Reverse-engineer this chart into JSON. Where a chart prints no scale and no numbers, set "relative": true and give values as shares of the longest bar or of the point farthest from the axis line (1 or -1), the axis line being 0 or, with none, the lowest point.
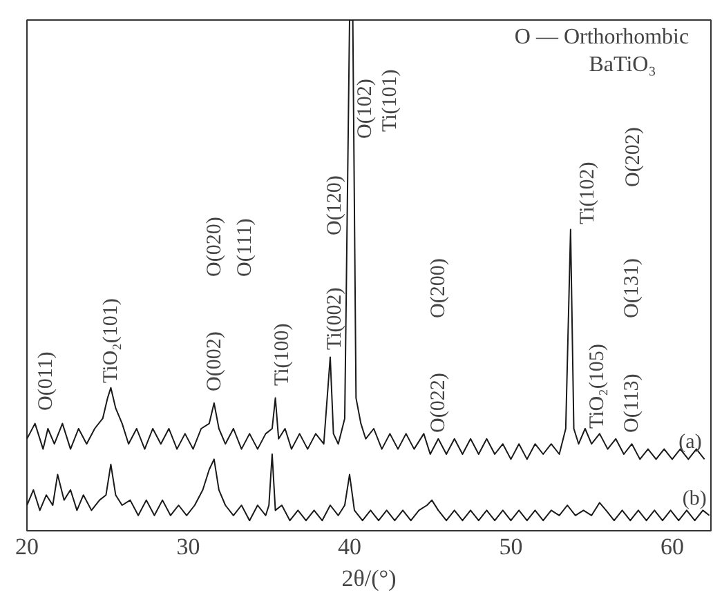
{
  "chart_data": {
    "type": "line",
    "relative": true,
    "xlabel": "2θ/(°)",
    "xlim": [
      20,
      62.4
    ],
    "xticks": [
      20,
      30,
      40,
      50,
      60
    ],
    "tick_labels": "x",
    "grid": false,
    "x": [
      20.0,
      20.5,
      21.0,
      21.3,
      21.7,
      22.2,
      22.7,
      23.2,
      23.7,
      24.2,
      24.7,
      25.0,
      25.2,
      25.5,
      25.9,
      26.3,
      26.8,
      27.3,
      27.8,
      28.3,
      28.8,
      29.3,
      29.8,
      30.3,
      30.8,
      31.3,
      31.6,
      31.9,
      32.3,
      32.8,
      33.3,
      33.8,
      34.3,
      34.8,
      35.2,
      35.4,
      35.6,
      36.0,
      36.4,
      36.9,
      37.4,
      37.9,
      38.4,
      38.8,
      39.0,
      39.3,
      39.7,
      40.0,
      40.2,
      40.4,
      40.7,
      41.0,
      41.5,
      42.0,
      42.5,
      43.0,
      43.5,
      44.0,
      44.6,
      45.0,
      45.5,
      46.0,
      46.5,
      47.0,
      47.5,
      48.0,
      48.5,
      49.0,
      49.5,
      50.0,
      50.5,
      51.0,
      51.5,
      52.0,
      52.5,
      53.0,
      53.4,
      53.7,
      53.9,
      54.2,
      54.6,
      55.0,
      55.5,
      56.0,
      56.5,
      57.0,
      57.5,
      58.0,
      58.5,
      59.0,
      59.5,
      60.0,
      60.5,
      61.0,
      61.5,
      62.0
    ],
    "series": [
      {
        "name": "(a)",
        "color": "#1a1a1a",
        "values": [
          0.18,
          0.21,
          0.16,
          0.2,
          0.17,
          0.21,
          0.16,
          0.2,
          0.17,
          0.2,
          0.22,
          0.26,
          0.28,
          0.24,
          0.21,
          0.17,
          0.2,
          0.16,
          0.2,
          0.17,
          0.2,
          0.16,
          0.19,
          0.16,
          0.2,
          0.21,
          0.25,
          0.2,
          0.17,
          0.2,
          0.16,
          0.19,
          0.16,
          0.19,
          0.2,
          0.26,
          0.18,
          0.2,
          0.16,
          0.19,
          0.16,
          0.19,
          0.17,
          0.34,
          0.19,
          0.17,
          0.22,
          1.0,
          1.0,
          0.26,
          0.21,
          0.18,
          0.2,
          0.16,
          0.19,
          0.16,
          0.19,
          0.16,
          0.19,
          0.15,
          0.18,
          0.15,
          0.18,
          0.15,
          0.18,
          0.15,
          0.18,
          0.15,
          0.17,
          0.14,
          0.17,
          0.14,
          0.17,
          0.15,
          0.17,
          0.15,
          0.2,
          0.59,
          0.2,
          0.17,
          0.2,
          0.17,
          0.19,
          0.16,
          0.18,
          0.15,
          0.17,
          0.14,
          0.16,
          0.14,
          0.16,
          0.14,
          0.16,
          0.14,
          0.16,
          0.14
        ]
      },
      {
        "name": "(b)",
        "color": "#1a1a1a",
        "x": [
          20.0,
          20.4,
          20.8,
          21.2,
          21.6,
          21.9,
          22.3,
          22.7,
          23.1,
          23.5,
          24.0,
          24.5,
          24.9,
          25.2,
          25.5,
          25.9,
          26.4,
          26.9,
          27.4,
          27.9,
          28.4,
          28.9,
          29.4,
          29.9,
          30.4,
          30.9,
          31.3,
          31.6,
          31.9,
          32.3,
          32.8,
          33.3,
          33.8,
          34.3,
          34.8,
          35.0,
          35.2,
          35.4,
          35.8,
          36.3,
          36.8,
          37.3,
          37.8,
          38.3,
          38.8,
          39.3,
          39.7,
          40.0,
          40.3,
          40.8,
          41.3,
          41.8,
          42.3,
          42.8,
          43.3,
          43.8,
          44.3,
          44.8,
          45.1,
          45.5,
          46.0,
          46.5,
          47.0,
          47.5,
          48.0,
          48.5,
          49.0,
          49.5,
          50.0,
          50.5,
          51.0,
          51.5,
          52.0,
          52.5,
          53.0,
          53.5,
          54.0,
          54.5,
          55.0,
          55.5,
          55.9,
          56.4,
          56.9,
          57.4,
          57.9,
          58.4,
          58.9,
          59.4,
          59.9,
          60.4,
          60.9,
          61.4,
          61.9,
          62.3
        ],
        "values": [
          0.05,
          0.08,
          0.04,
          0.07,
          0.05,
          0.11,
          0.06,
          0.08,
          0.04,
          0.07,
          0.04,
          0.06,
          0.07,
          0.13,
          0.07,
          0.05,
          0.06,
          0.03,
          0.06,
          0.03,
          0.06,
          0.03,
          0.05,
          0.03,
          0.05,
          0.08,
          0.12,
          0.14,
          0.08,
          0.05,
          0.03,
          0.05,
          0.02,
          0.05,
          0.03,
          0.05,
          0.15,
          0.04,
          0.05,
          0.02,
          0.04,
          0.02,
          0.04,
          0.02,
          0.05,
          0.03,
          0.05,
          0.11,
          0.04,
          0.02,
          0.04,
          0.02,
          0.04,
          0.02,
          0.04,
          0.02,
          0.04,
          0.05,
          0.06,
          0.04,
          0.02,
          0.04,
          0.02,
          0.04,
          0.02,
          0.04,
          0.02,
          0.04,
          0.02,
          0.04,
          0.02,
          0.04,
          0.02,
          0.04,
          0.03,
          0.05,
          0.03,
          0.04,
          0.03,
          0.055,
          0.04,
          0.02,
          0.04,
          0.02,
          0.04,
          0.02,
          0.04,
          0.02,
          0.04,
          0.02,
          0.04,
          0.02,
          0.04,
          0.03
        ]
      }
    ],
    "annotations": [
      "O — Orthorhombic",
      "BaTiO₃",
      "O(011)",
      "TiO₂(101)",
      "O(002)",
      "O(020)",
      "O(111)",
      "Ti(100)",
      "Ti(002)",
      "O(120)",
      "O(102)",
      "Ti(101)",
      "O(022)",
      "O(200)",
      "Ti(102)",
      "TiO₂(105)",
      "O(113)",
      "O(131)",
      "O(202)"
    ]
  }
}
